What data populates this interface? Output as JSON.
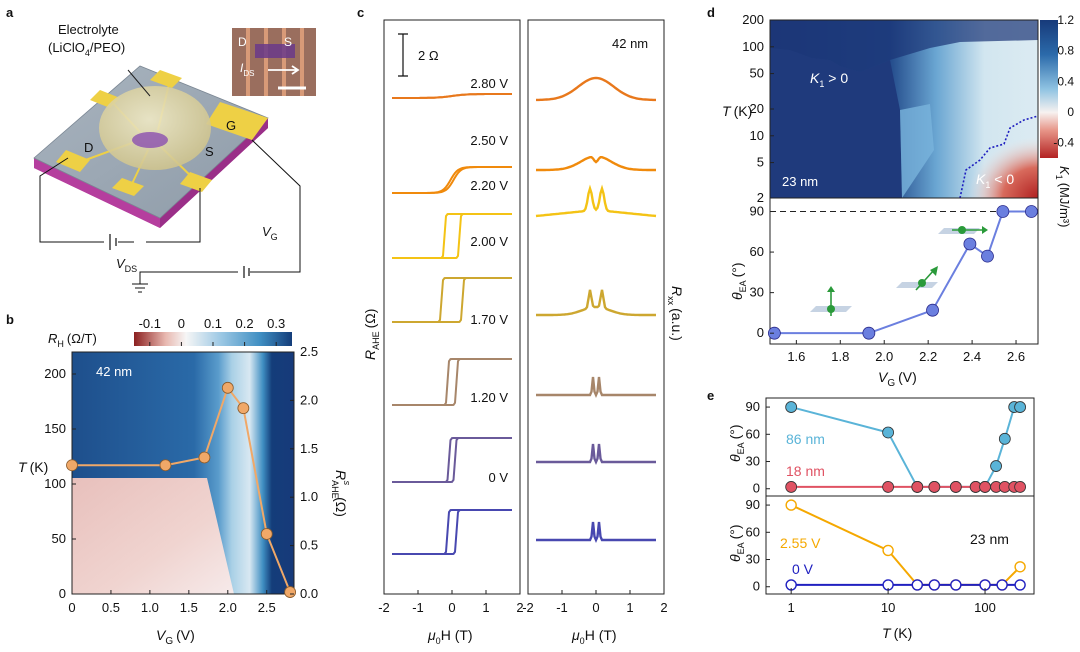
{
  "panels": {
    "a": "a",
    "b": "b",
    "c": "c",
    "d": "d",
    "e": "e"
  },
  "colors": {
    "rh_scale": [
      "#8b2020",
      "#e8b8b0",
      "#f6f6f6",
      "#9cc8e4",
      "#3f8ec2",
      "#143d7a"
    ],
    "k1_scale": [
      "#b32222",
      "#e79588",
      "#f7f2f0",
      "#8fc3e2",
      "#2b6aaa",
      "#173a7a"
    ],
    "orange": "#f0a868",
    "blue_line": "#6b7fdf",
    "cyan": "#5ab4d8",
    "red": "#e05263",
    "gold": "#f5a800",
    "navy": "#2020c0"
  },
  "schematic": {
    "electrolyte_label_1": "Electrolyte",
    "electrolyte_label_2": "(LiClO",
    "electrolyte_label_3": "/PEO)",
    "electrolyte_sub": "4",
    "terminal_d": "D",
    "terminal_s": "S",
    "terminal_g": "G",
    "vds": "V",
    "vds_sub": "DS",
    "vg": "V",
    "vg_sub": "G",
    "inset_d": "D",
    "inset_s": "S",
    "inset_ids": "I",
    "inset_ids_sub": "DS"
  },
  "chart_data": [
    {
      "id": "b",
      "type": "heatmap",
      "colorbar_label": "R",
      "colorbar_label_sub": "H",
      "colorbar_label_unit": "(Ω/T)",
      "colorbar_ticks": [
        "-0.1",
        "0",
        "0.1",
        "0.2",
        "0.3"
      ],
      "colorbar_range": [
        -0.15,
        0.35
      ],
      "annotation": "42 nm",
      "xlabel": "V",
      "xlabel_sub": "G",
      "xlabel_unit": "(V)",
      "ylabel": "T",
      "ylabel_unit": "(K)",
      "y2label": "R",
      "y2label_sub": "AHE",
      "y2label_sup": "s",
      "y2label_unit": "(Ω)",
      "xlim": [
        0,
        2.85
      ],
      "ylim": [
        0,
        220
      ],
      "y2lim": [
        0,
        2.5
      ],
      "xticks": [
        "0",
        "0.5",
        "1.0",
        "1.5",
        "2.0",
        "2.5"
      ],
      "yticks": [
        "0",
        "50",
        "100",
        "150",
        "200"
      ],
      "y2ticks": [
        "0.0",
        "0.5",
        "1.0",
        "1.5",
        "2.0",
        "2.5"
      ],
      "series": [
        {
          "x": [
            0,
            1.2,
            1.7,
            2.0,
            2.2,
            2.5,
            2.8
          ],
          "y": [
            1.33,
            1.33,
            1.41,
            2.13,
            1.92,
            0.62,
            0.02
          ]
        }
      ]
    },
    {
      "id": "c",
      "type": "line",
      "scale_bar": "2 Ω",
      "annotation": "42 nm",
      "ylabel_left": "R",
      "ylabel_left_sub": "AHE",
      "ylabel_left_unit": "(Ω)",
      "ylabel_right": "R",
      "ylabel_right_sub": "xx",
      "ylabel_right_unit": "(a.u.)",
      "xlabel": "μ",
      "xlabel_sub": "0",
      "xlabel_tail": "H (T)",
      "xlim": [
        -2,
        2
      ],
      "xticks": [
        "-2",
        "-1",
        "0",
        "1",
        "2"
      ],
      "series": [
        {
          "name": "2.80 V",
          "color": "#e8781c",
          "kind": "flat",
          "coercive": 0,
          "amp": 0.1,
          "rxx": "vdip",
          "rxx_amp": 1.0
        },
        {
          "name": "2.50 V",
          "color": "#f08a0c",
          "kind": "soft",
          "coercive": 0.05,
          "amp": 1.0,
          "rxx": "vdip_bump",
          "rxx_amp": 0.8
        },
        {
          "name": "2.20 V",
          "color": "#f4c315",
          "kind": "square",
          "coercive": 0.25,
          "amp": 1.0,
          "rxx": "peaks",
          "rxx_amp": 1.0
        },
        {
          "name": "2.00 V",
          "color": "#cda730",
          "kind": "square",
          "coercive": 0.35,
          "amp": 1.0,
          "rxx": "vdip_peaks",
          "rxx_amp": 1.2
        },
        {
          "name": "1.70 V",
          "color": "#a7866a",
          "kind": "square",
          "coercive": 0.15,
          "amp": 1.0,
          "rxx": "spikes",
          "rxx_amp": 1.0
        },
        {
          "name": "1.20 V",
          "color": "#6a5a9a",
          "kind": "square",
          "coercive": 0.1,
          "amp": 1.0,
          "rxx": "spikes",
          "rxx_amp": 1.0
        },
        {
          "name": "0 V",
          "color": "#4848b0",
          "kind": "square",
          "coercive": 0.15,
          "amp": 1.0,
          "rxx": "spikes",
          "rxx_amp": 1.0
        }
      ]
    },
    {
      "id": "d-top",
      "type": "heatmap",
      "annotation_upper": "K",
      "annotation_upper_sub": "1",
      "annotation_upper_tail": " > 0",
      "annotation_lower": "K",
      "annotation_lower_sub": "1",
      "annotation_lower_tail": " < 0",
      "thickness": "23 nm",
      "ylabel": "T",
      "ylabel_unit": "(K)",
      "yscale": "log",
      "ylim": [
        2,
        200
      ],
      "yticks": [
        "2",
        "5",
        "10",
        "20",
        "50",
        "100",
        "200"
      ],
      "colorbar_ticks": [
        "1.2",
        "0.8",
        "0.4",
        "0",
        "-0.4"
      ],
      "colorbar_range": [
        -0.6,
        1.2
      ],
      "colorbar_label": "K",
      "colorbar_label_sub": "1",
      "colorbar_label_unit": "(MJ/m³)"
    },
    {
      "id": "d-bottom",
      "type": "line",
      "xlabel": "V",
      "xlabel_sub": "G",
      "xlabel_unit": "(V)",
      "ylabel": "θ",
      "ylabel_sub": "EA",
      "ylabel_unit": "(°)",
      "xlim": [
        1.48,
        2.7
      ],
      "ylim": [
        -8,
        100
      ],
      "xticks": [
        "1.6",
        "1.8",
        "2.0",
        "2.2",
        "2.4",
        "2.6"
      ],
      "yticks": [
        "0",
        "30",
        "60",
        "90"
      ],
      "dashed_y": 90,
      "series": [
        {
          "x": [
            1.5,
            1.93,
            2.22,
            2.39,
            2.47,
            2.54,
            2.67
          ],
          "y": [
            0,
            0,
            17,
            66,
            57,
            90,
            90
          ]
        }
      ]
    },
    {
      "id": "e-top",
      "type": "line",
      "ylabel": "θ",
      "ylabel_sub": "EA",
      "ylabel_unit": "(°)",
      "xscale": "log",
      "xlim": [
        0.55,
        320
      ],
      "ylim": [
        -8,
        100
      ],
      "yticks": [
        "0",
        "30",
        "60",
        "90"
      ],
      "series": [
        {
          "name": "86 nm",
          "x": [
            1,
            10,
            20,
            30,
            50,
            80,
            100,
            130,
            160,
            200,
            230
          ],
          "y": [
            90,
            62,
            2,
            2,
            2,
            2,
            2,
            25,
            55,
            90,
            90
          ]
        },
        {
          "name": "18 nm",
          "x": [
            1,
            10,
            20,
            30,
            50,
            80,
            100,
            130,
            160,
            200,
            230
          ],
          "y": [
            2,
            2,
            2,
            2,
            2,
            2,
            2,
            2,
            2,
            2,
            2
          ]
        }
      ]
    },
    {
      "id": "e-bottom",
      "type": "line",
      "annotation": "23 nm",
      "xlabel": "T",
      "xlabel_unit": "(K)",
      "ylabel": "θ",
      "ylabel_sub": "EA",
      "ylabel_unit": "(°)",
      "xscale": "log",
      "xlim": [
        0.55,
        320
      ],
      "ylim": [
        -8,
        100
      ],
      "xticks": [
        "1",
        "10",
        "100"
      ],
      "yticks": [
        "0",
        "30",
        "60",
        "90"
      ],
      "series": [
        {
          "name": "2.55 V",
          "x": [
            1,
            10,
            20,
            30,
            50,
            100,
            150,
            230
          ],
          "y": [
            90,
            40,
            2,
            2,
            2,
            2,
            2,
            22
          ]
        },
        {
          "name": "0 V",
          "x": [
            1,
            10,
            20,
            30,
            50,
            100,
            150,
            230
          ],
          "y": [
            2,
            2,
            2,
            2,
            2,
            2,
            2,
            2
          ]
        }
      ]
    }
  ]
}
